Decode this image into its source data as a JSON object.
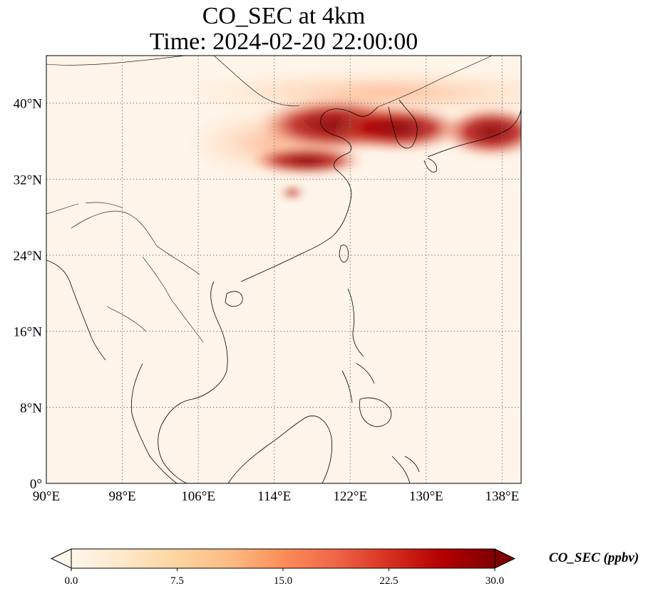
{
  "title": {
    "line1": "CO_SEC at 4km",
    "line2": "Time: 2024-02-20 22:00:00"
  },
  "map": {
    "lon_range": [
      90,
      140
    ],
    "lat_range": [
      0,
      45
    ],
    "lon_ticks": [
      90,
      98,
      106,
      114,
      122,
      130,
      138
    ],
    "lat_ticks": [
      0,
      8,
      16,
      24,
      32,
      40
    ],
    "lon_labels": [
      "90°E",
      "98°E",
      "106°E",
      "114°E",
      "122°E",
      "130°E",
      "138°E"
    ],
    "lat_labels": [
      "0°",
      "8°N",
      "16°N",
      "24°N",
      "32°N",
      "40°N"
    ],
    "gridlines": "dotted",
    "projection": "PlateCarree",
    "colormap": "OrRd",
    "background_color": "#fff5ea",
    "plumes": [
      {
        "lon": 128.0,
        "lat": 38.5,
        "value": 30
      },
      {
        "lon": 122.5,
        "lat": 38.0,
        "value": 30
      },
      {
        "lon": 136.5,
        "lat": 37.5,
        "value": 30
      },
      {
        "lon": 119.0,
        "lat": 35.5,
        "value": 26
      },
      {
        "lon": 116.5,
        "lat": 33.5,
        "value": 22
      },
      {
        "lon": 124.0,
        "lat": 41.0,
        "value": 16
      },
      {
        "lon": 112.0,
        "lat": 40.0,
        "value": 8
      },
      {
        "lon": 113.0,
        "lat": 34.5,
        "value": 9
      },
      {
        "lon": 116.5,
        "lat": 30.5,
        "value": 20
      }
    ]
  },
  "colorbar": {
    "label": "CO_SEC (ppbv)",
    "min": 0.0,
    "max": 30.0,
    "extend": "both",
    "tick_values": [
      0.0,
      7.5,
      15.0,
      22.5,
      30.0
    ],
    "tick_labels": [
      "0.0",
      "7.5",
      "15.0",
      "22.5",
      "30.0"
    ],
    "stops": [
      "#fff7ec",
      "#fee8c8",
      "#fdd49e",
      "#fdbb84",
      "#fc8d59",
      "#ef6548",
      "#d7301f",
      "#b30000",
      "#7f0000"
    ]
  }
}
